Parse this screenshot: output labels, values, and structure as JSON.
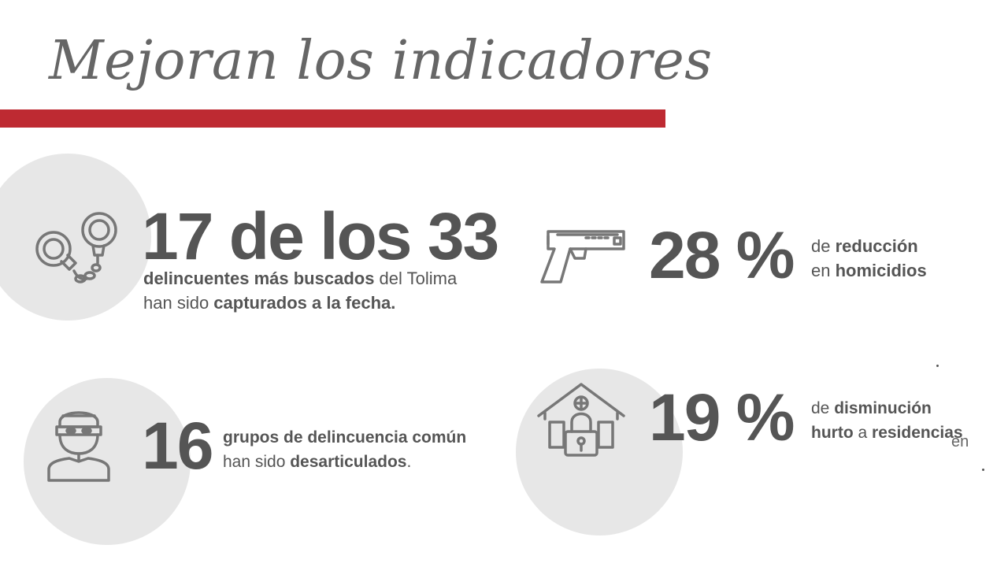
{
  "title": "Mejoran los indicadores",
  "colors": {
    "accent": "#be2a32",
    "circle": "#e7e7e7",
    "text": "#555555"
  },
  "stats": [
    {
      "icon": "handcuffs-icon",
      "value": "17 de los 33",
      "line1_b1": "delincuentes más buscados",
      "line1_n1": " del Tolima",
      "line2_n1": "han sido ",
      "line2_b1": "capturados a la fecha."
    },
    {
      "icon": "pistol-icon",
      "value": "28 %",
      "line1_n1": "de ",
      "line1_b1": "reducción",
      "line2_n1": "en ",
      "line2_b1": "homicidios"
    },
    {
      "icon": "masked-thief-icon",
      "value": "16",
      "line1_b1": "grupos de delincuencia común",
      "line2_n1": "han sido ",
      "line2_b1": "desarticulados",
      "line2_n2": "."
    },
    {
      "icon": "house-lock-icon",
      "value": "19 %",
      "line1_n1": "de ",
      "line1_b1": "disminución",
      "line2_b1": "hurto",
      "line2_n1": " a ",
      "line2_b2": "residencias",
      "stray": "en"
    }
  ]
}
